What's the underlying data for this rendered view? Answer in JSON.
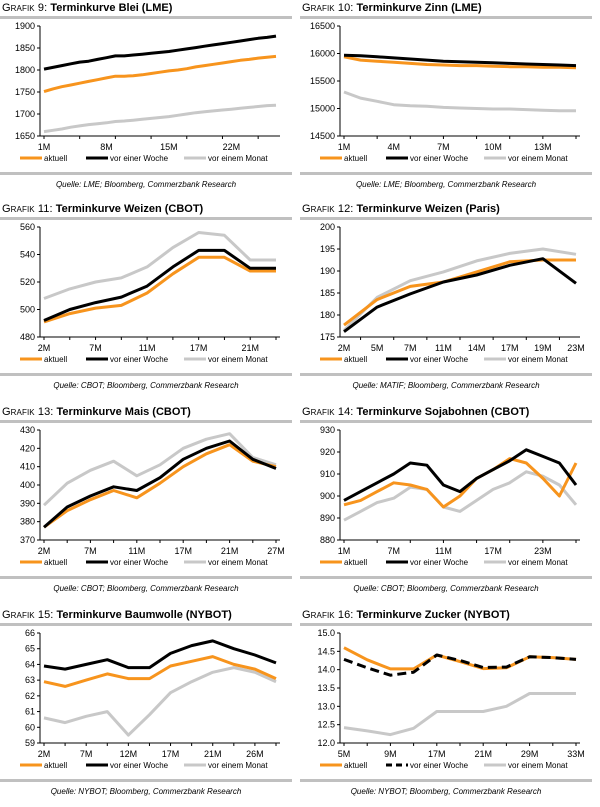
{
  "legend": {
    "aktuell": "aktuell",
    "woche": "vor einer Woche",
    "monat": "vor einem Monat"
  },
  "colors": {
    "aktuell": "#f7941d",
    "woche": "#000000",
    "monat": "#c8c8c8",
    "rule": "#c0c0c0"
  },
  "chart_data": [
    {
      "id": "g9",
      "prefix": "Grafik 9:",
      "title": "Terminkurve Blei (LME)",
      "source": "Quelle: LME; Bloomberg, Commerzbank Research",
      "type": "line",
      "ylim": [
        1650,
        1900
      ],
      "yticks": [
        1650,
        1700,
        1750,
        1800,
        1850,
        1900
      ],
      "xlabels": [
        "1M",
        "8M",
        "15M",
        "22M"
      ],
      "xlabel_pos": [
        0,
        7,
        14,
        21
      ],
      "n": 27,
      "series": [
        {
          "name": "vor einem Monat",
          "key": "monat",
          "values": [
            1660,
            1663,
            1666,
            1670,
            1673,
            1676,
            1678,
            1680,
            1683,
            1684,
            1686,
            1688,
            1690,
            1692,
            1694,
            1697,
            1700,
            1703,
            1705,
            1707,
            1709,
            1711,
            1713,
            1715,
            1717,
            1719,
            1720
          ]
        },
        {
          "name": "aktuell",
          "key": "aktuell",
          "values": [
            1751,
            1757,
            1762,
            1766,
            1770,
            1774,
            1778,
            1782,
            1786,
            1786,
            1787,
            1789,
            1792,
            1795,
            1798,
            1800,
            1803,
            1807,
            1810,
            1813,
            1816,
            1819,
            1822,
            1824,
            1827,
            1829,
            1831
          ]
        },
        {
          "name": "vor einer Woche",
          "key": "woche",
          "values": [
            1802,
            1806,
            1810,
            1814,
            1818,
            1820,
            1824,
            1828,
            1832,
            1832,
            1834,
            1836,
            1838,
            1840,
            1842,
            1845,
            1848,
            1851,
            1854,
            1857,
            1860,
            1863,
            1866,
            1869,
            1872,
            1874,
            1877
          ]
        }
      ]
    },
    {
      "id": "g10",
      "prefix": "Grafik 10:",
      "title": "Terminkurve Zinn (LME)",
      "source": "Quelle: LME; Bloomberg, Commerzbank Research",
      "type": "line",
      "ylim": [
        14500,
        16500
      ],
      "yticks": [
        14500,
        15000,
        15500,
        16000,
        16500
      ],
      "xlabels": [
        "1M",
        "4M",
        "7M",
        "10M",
        "13M"
      ],
      "xlabel_pos": [
        0,
        3,
        6,
        9,
        12
      ],
      "n": 15,
      "series": [
        {
          "name": "vor einem Monat",
          "key": "monat",
          "values": [
            15300,
            15190,
            15130,
            15070,
            15050,
            15040,
            15020,
            15010,
            15000,
            14990,
            14990,
            14980,
            14970,
            14960,
            14960
          ]
        },
        {
          "name": "aktuell",
          "key": "aktuell",
          "values": [
            15940,
            15880,
            15860,
            15840,
            15820,
            15800,
            15790,
            15780,
            15780,
            15770,
            15760,
            15760,
            15750,
            15750,
            15740
          ]
        },
        {
          "name": "vor einer Woche",
          "key": "woche",
          "values": [
            15970,
            15960,
            15940,
            15920,
            15900,
            15880,
            15860,
            15850,
            15840,
            15830,
            15820,
            15810,
            15800,
            15790,
            15780
          ]
        }
      ]
    },
    {
      "id": "g11",
      "prefix": "Grafik 11:",
      "title": "Terminkurve Weizen (CBOT)",
      "source": "Quelle: CBOT; Bloomberg, Commerzbank Research",
      "type": "line",
      "ylim": [
        480,
        560
      ],
      "yticks": [
        480,
        500,
        520,
        540,
        560
      ],
      "xlabels": [
        "2M",
        "7M",
        "11M",
        "17M",
        "21M"
      ],
      "xlabel_pos": [
        0,
        2,
        4,
        6,
        8
      ],
      "n": 10,
      "series": [
        {
          "name": "vor einem Monat",
          "key": "monat",
          "values": [
            508,
            515,
            520,
            523,
            531,
            545,
            556,
            554,
            536,
            536
          ]
        },
        {
          "name": "aktuell",
          "key": "aktuell",
          "values": [
            491,
            497,
            501,
            503,
            512,
            526,
            538,
            538,
            528,
            528
          ]
        },
        {
          "name": "vor einer Woche",
          "key": "woche",
          "values": [
            492,
            500,
            505,
            509,
            517,
            531,
            543,
            543,
            530,
            530
          ]
        }
      ]
    },
    {
      "id": "g12",
      "prefix": "Grafik 12:",
      "title": "Terminkurve Weizen (Paris)",
      "source": "Quelle: MATIF; Bloomberg, Commerzbank Research",
      "type": "line",
      "ylim": [
        175,
        200
      ],
      "yticks": [
        175,
        180,
        185,
        190,
        195,
        200
      ],
      "xlabels": [
        "2M",
        "5M",
        "7M",
        "11M",
        "14M",
        "17M",
        "19M",
        "23M"
      ],
      "xlabel_pos": [
        0,
        1,
        2,
        3,
        4,
        5,
        6,
        7
      ],
      "n": 8,
      "series": [
        {
          "name": "vor einem Monat",
          "key": "monat",
          "values": [
            176.5,
            184.0,
            187.8,
            189.8,
            192.3,
            194.0,
            195.0,
            193.8
          ]
        },
        {
          "name": "aktuell",
          "key": "aktuell",
          "values": [
            177.7,
            183.5,
            186.5,
            187.5,
            189.8,
            192.1,
            192.5,
            192.5
          ]
        },
        {
          "name": "vor einer Woche",
          "key": "woche",
          "values": [
            176.2,
            181.8,
            184.8,
            187.5,
            189.1,
            191.3,
            192.8,
            187.2
          ]
        }
      ]
    },
    {
      "id": "g13",
      "prefix": "Grafik 13:",
      "title": "Terminkurve Mais (CBOT)",
      "source": "Quelle: CBOT; Bloomberg, Commerzbank Research",
      "type": "line",
      "ylim": [
        370,
        430
      ],
      "yticks": [
        370,
        380,
        390,
        400,
        410,
        420,
        430
      ],
      "xlabels": [
        "2M",
        "7M",
        "11M",
        "17M",
        "21M",
        "27M"
      ],
      "xlabel_pos": [
        0,
        2,
        4,
        6,
        8,
        10
      ],
      "n": 11,
      "series": [
        {
          "name": "vor einem Monat",
          "key": "monat",
          "values": [
            389,
            401,
            408,
            413,
            405,
            411,
            420,
            425,
            428,
            415,
            411
          ]
        },
        {
          "name": "aktuell",
          "key": "aktuell",
          "values": [
            377,
            386,
            392,
            397,
            393,
            401,
            410,
            417,
            422,
            413,
            410
          ]
        },
        {
          "name": "vor einer Woche",
          "key": "woche",
          "values": [
            377,
            388,
            394,
            399,
            397,
            404,
            414,
            420,
            424,
            414,
            409
          ]
        }
      ]
    },
    {
      "id": "g14",
      "prefix": "Grafik 14:",
      "title": "Terminkurve Sojabohnen (CBOT)",
      "source": "Quelle: CBOT; Bloomberg, Commerzbank Research",
      "type": "line",
      "ylim": [
        880,
        930
      ],
      "yticks": [
        880,
        890,
        900,
        910,
        920,
        930
      ],
      "xlabels": [
        "1M",
        "7M",
        "11M",
        "17M",
        "23M"
      ],
      "xlabel_pos": [
        0,
        3,
        6,
        9,
        12
      ],
      "n": 15,
      "series": [
        {
          "name": "vor einem Monat",
          "key": "monat",
          "values": [
            889,
            893,
            897,
            899,
            904,
            903,
            895,
            893,
            898,
            903,
            906,
            911,
            909,
            905,
            896
          ]
        },
        {
          "name": "aktuell",
          "key": "aktuell",
          "values": [
            896,
            898,
            902,
            906,
            905,
            903,
            895,
            900,
            908,
            912,
            917,
            915,
            908,
            900,
            915
          ]
        },
        {
          "name": "vor einer Woche",
          "key": "woche",
          "values": [
            898,
            902,
            906,
            910,
            915,
            914,
            905,
            902,
            908,
            912,
            916,
            921,
            918,
            915,
            905
          ]
        }
      ]
    },
    {
      "id": "g15",
      "prefix": "Grafik 15:",
      "title": "Terminkurve Baumwolle (NYBOT)",
      "source": "Quelle: NYBOT; Bloomberg, Commerzbank Research",
      "type": "line",
      "ylim": [
        59,
        66
      ],
      "yticks": [
        59,
        60,
        61,
        62,
        63,
        64,
        65,
        66
      ],
      "xlabels": [
        "2M",
        "7M",
        "12M",
        "17M",
        "21M",
        "26M"
      ],
      "xlabel_pos": [
        0,
        2,
        4,
        6,
        8,
        10
      ],
      "n": 12,
      "series": [
        {
          "name": "vor einem Monat",
          "key": "monat",
          "values": [
            60.6,
            60.3,
            60.7,
            61.0,
            59.5,
            60.8,
            62.2,
            62.9,
            63.5,
            63.8,
            63.5,
            62.9
          ]
        },
        {
          "name": "aktuell",
          "key": "aktuell",
          "values": [
            62.9,
            62.6,
            63.0,
            63.4,
            63.1,
            63.1,
            63.9,
            64.2,
            64.5,
            64.0,
            63.7,
            63.1
          ]
        },
        {
          "name": "vor einer Woche",
          "key": "woche",
          "values": [
            63.9,
            63.7,
            64.0,
            64.3,
            63.8,
            63.8,
            64.7,
            65.2,
            65.5,
            65.0,
            64.6,
            64.1
          ]
        }
      ]
    },
    {
      "id": "g16",
      "prefix": "Grafik 16:",
      "title": "Terminkurve Zucker (NYBOT)",
      "source": "Quelle: NYBOT; Bloomberg, Commerzbank Research",
      "type": "line",
      "ylim": [
        12.0,
        15.0
      ],
      "yticks": [
        12.0,
        12.5,
        13.0,
        13.5,
        14.0,
        14.5,
        15.0
      ],
      "ytick_decimals": 1,
      "xlabels": [
        "5M",
        "9M",
        "17M",
        "21M",
        "29M",
        "33M"
      ],
      "xlabel_pos": [
        0,
        2,
        4,
        6,
        8,
        10
      ],
      "n": 11,
      "dashed_woche": true,
      "series": [
        {
          "name": "vor einem Monat",
          "key": "monat",
          "values": [
            12.42,
            12.33,
            12.23,
            12.4,
            12.86,
            12.86,
            12.86,
            13.0,
            13.35,
            13.35,
            13.35
          ]
        },
        {
          "name": "aktuell",
          "key": "aktuell",
          "values": [
            14.6,
            14.27,
            14.02,
            14.02,
            14.4,
            14.22,
            14.03,
            14.05,
            14.35,
            14.33,
            14.28
          ]
        },
        {
          "name": "vor einer Woche",
          "key": "woche",
          "values": [
            14.28,
            14.05,
            13.85,
            13.93,
            14.4,
            14.25,
            14.06,
            14.07,
            14.35,
            14.33,
            14.28
          ]
        }
      ]
    }
  ]
}
